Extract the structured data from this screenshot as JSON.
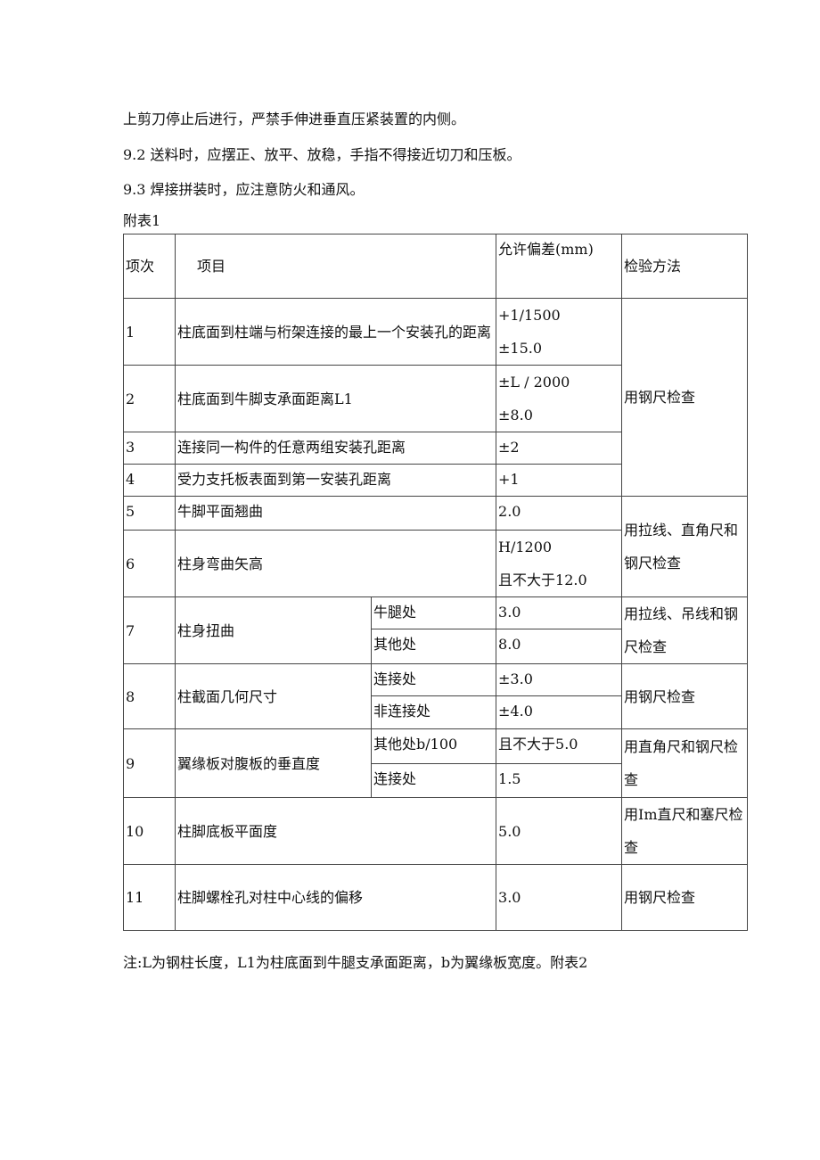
{
  "paragraphs": [
    "上剪刀停止后进行，严禁手伸进垂直压紧装置的内侧。",
    "9.2  送料时，应摆正、放平、放稳，手指不得接近切刀和压板。",
    "9.3  焊接拼装时，应注意防火和通风。"
  ],
  "table_caption": "附表1",
  "table": {
    "headers": [
      "项次",
      "项目",
      "允许偏差(mm)",
      "检验方法"
    ],
    "rows": {
      "r1": {
        "no": "1",
        "item": "柱底面到柱端与桁架连接的最上一个安装孔的距离",
        "tol1": "+1/1500",
        "tol2": "±15.0"
      },
      "r2": {
        "no": "2",
        "item": "柱底面到牛脚支承面距离L1",
        "tol1": "±L / 2000",
        "tol2": "±8.0"
      },
      "r3": {
        "no": "3",
        "item": "连接同一构件的任意两组安装孔距离",
        "tol": "±2"
      },
      "r4": {
        "no": "4",
        "item": "受力支托板表面到第一安装孔距离",
        "tol": "+1"
      },
      "m1_4": "用钢尺检查",
      "r5": {
        "no": "5",
        "item": "牛脚平面翘曲",
        "tol": "2.0"
      },
      "r6": {
        "no": "6",
        "item": "柱身弯曲矢高",
        "tol1": "H/1200",
        "tol2": "且不大于12.0"
      },
      "m5_6": "用拉线、直角尺和钢尺检查",
      "r7": {
        "no": "7",
        "item": "柱身扭曲",
        "sub1": "牛腿处",
        "tol1": "3.0",
        "sub2": "其他处",
        "tol2": "8.0",
        "method": "用拉线、吊线和钢尺检查"
      },
      "r8": {
        "no": "8",
        "item": "柱截面几何尺寸",
        "sub1": "连接处",
        "tol1": "±3.0",
        "sub2": "非连接处",
        "tol2": "±4.0",
        "method": "用钢尺检查"
      },
      "r9": {
        "no": "9",
        "item": "翼缘板对腹板的垂直度",
        "sub1": "其他处b/100",
        "tol1": "且不大于5.0",
        "sub2": "连接处",
        "tol2": "1.5",
        "method": "用直角尺和钢尺检查"
      },
      "r10": {
        "no": "10",
        "item": "柱脚底板平面度",
        "tol": "5.0",
        "method": "用Im直尺和塞尺检查"
      },
      "r11": {
        "no": "11",
        "item": "柱脚螺栓孔对柱中心线的偏移",
        "tol": "3.0",
        "method": "用钢尺检查"
      }
    }
  },
  "note": "注:L为钢柱长度，L1为柱底面到牛腿支承面距离，b为翼缘板宽度。附表2"
}
